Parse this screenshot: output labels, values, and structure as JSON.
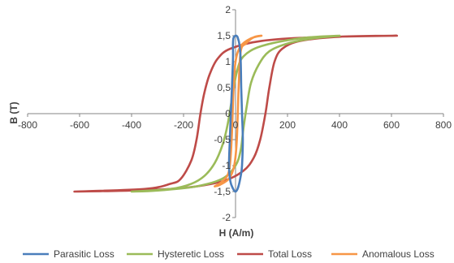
{
  "chart_data": {
    "type": "line",
    "title": "",
    "xlabel": "H (A/m)",
    "ylabel": "B (T)",
    "xlim": [
      -800,
      800
    ],
    "ylim": [
      -2,
      2
    ],
    "x_ticks": [
      "-800",
      "-600",
      "-400",
      "-200",
      "0",
      "200",
      "400",
      "600",
      "800"
    ],
    "y_ticks": [
      "2",
      "1,5",
      "1",
      "0,5",
      "0",
      "-0,5",
      "-1",
      "-1,5",
      "-2"
    ],
    "grid": false,
    "legend_position": "bottom",
    "series": [
      {
        "name": "Parasitic Loss",
        "color": "#4a7ebb",
        "points": [
          [
            -10,
            1.3
          ],
          [
            -10,
            1.0
          ],
          [
            -18,
            0
          ],
          [
            -22,
            -0.5
          ],
          [
            -25,
            -1.0
          ],
          [
            -20,
            -1.3
          ],
          [
            -10,
            -1.44
          ],
          [
            0,
            -1.5
          ],
          [
            10,
            -1.42
          ],
          [
            20,
            -1.2
          ],
          [
            25,
            -1.0
          ],
          [
            28,
            -0.5
          ],
          [
            25,
            0
          ],
          [
            22,
            0.5
          ],
          [
            20,
            1.0
          ],
          [
            16,
            1.3
          ],
          [
            8,
            1.47
          ],
          [
            0,
            1.5
          ],
          [
            -8,
            1.45
          ],
          [
            -10,
            1.3
          ]
        ]
      },
      {
        "name": "Hysteretic Loss",
        "color": "#9bbb59",
        "points": [
          [
            -400,
            -1.5
          ],
          [
            -250,
            -1.45
          ],
          [
            -170,
            -1.35
          ],
          [
            -120,
            -1.2
          ],
          [
            -80,
            -0.95
          ],
          [
            -50,
            -0.6
          ],
          [
            -30,
            -0.2
          ],
          [
            -10,
            0.4
          ],
          [
            5,
            0.8
          ],
          [
            30,
            1.1
          ],
          [
            100,
            1.3
          ],
          [
            250,
            1.45
          ],
          [
            400,
            1.5
          ],
          [
            300,
            1.45
          ],
          [
            200,
            1.35
          ],
          [
            130,
            1.2
          ],
          [
            90,
            0.95
          ],
          [
            60,
            0.6
          ],
          [
            45,
            0.2
          ],
          [
            30,
            -0.3
          ],
          [
            20,
            -0.7
          ],
          [
            0,
            -1.0
          ],
          [
            -50,
            -1.25
          ],
          [
            -150,
            -1.4
          ],
          [
            -300,
            -1.48
          ],
          [
            -400,
            -1.5
          ]
        ]
      },
      {
        "name": "Total Loss",
        "color": "#be4b48",
        "points": [
          [
            -620,
            -1.5
          ],
          [
            -350,
            -1.45
          ],
          [
            -250,
            -1.35
          ],
          [
            -210,
            -1.25
          ],
          [
            -170,
            -0.9
          ],
          [
            -150,
            -0.5
          ],
          [
            -135,
            0
          ],
          [
            -120,
            0.4
          ],
          [
            -100,
            0.75
          ],
          [
            -70,
            1.05
          ],
          [
            -20,
            1.25
          ],
          [
            100,
            1.4
          ],
          [
            300,
            1.47
          ],
          [
            620,
            1.5
          ],
          [
            400,
            1.48
          ],
          [
            250,
            1.4
          ],
          [
            180,
            1.25
          ],
          [
            150,
            1.0
          ],
          [
            130,
            0.5
          ],
          [
            115,
            0
          ],
          [
            95,
            -0.5
          ],
          [
            70,
            -0.85
          ],
          [
            30,
            -1.1
          ],
          [
            -50,
            -1.3
          ],
          [
            -200,
            -1.43
          ],
          [
            -400,
            -1.48
          ],
          [
            -620,
            -1.5
          ]
        ]
      },
      {
        "name": "Anomalous Loss",
        "color": "#f79646",
        "points": [
          [
            -80,
            -1.4
          ],
          [
            -50,
            -1.3
          ],
          [
            -25,
            -1.1
          ],
          [
            -15,
            -0.5
          ],
          [
            -8,
            0.4
          ],
          [
            0,
            1.0
          ],
          [
            20,
            1.3
          ],
          [
            60,
            1.45
          ],
          [
            100,
            1.5
          ],
          [
            70,
            1.47
          ],
          [
            40,
            1.35
          ],
          [
            20,
            1.2
          ],
          [
            12,
            0.5
          ],
          [
            5,
            -0.5
          ],
          [
            -5,
            -1.0
          ],
          [
            -25,
            -1.25
          ],
          [
            -60,
            -1.37
          ],
          [
            -80,
            -1.4
          ]
        ]
      }
    ]
  }
}
